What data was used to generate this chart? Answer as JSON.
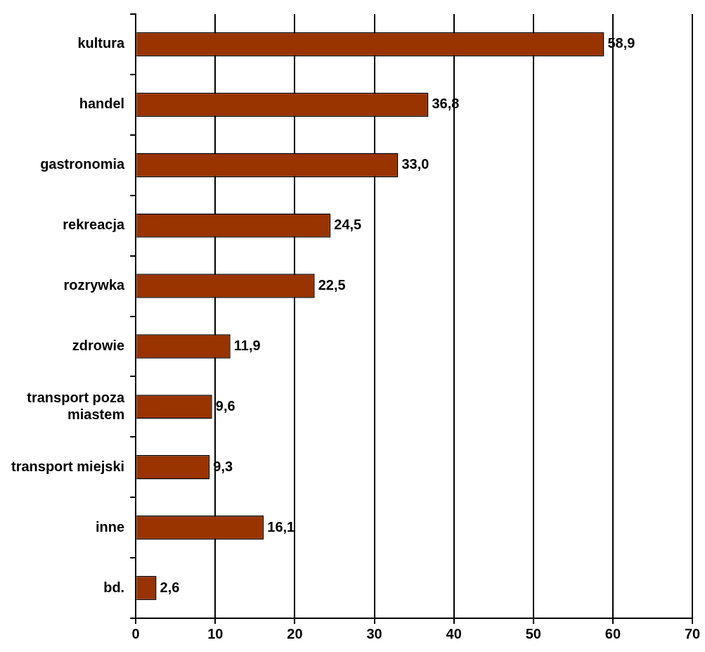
{
  "chart_data": {
    "type": "bar",
    "orientation": "horizontal",
    "categories": [
      "kultura",
      "handel",
      "gastronomia",
      "rekreacja",
      "rozrywka",
      "zdrowie",
      "transport poza miastem",
      "transport miejski",
      "inne",
      "bd."
    ],
    "values": [
      58.9,
      36.8,
      33.0,
      24.5,
      22.5,
      11.9,
      9.6,
      9.3,
      16.1,
      2.6
    ],
    "value_labels": [
      "58,9",
      "36,8",
      "33,0",
      "24,5",
      "22,5",
      "11,9",
      "9,6",
      "9,3",
      "16,1",
      "2,6"
    ],
    "color": "#993300",
    "xlim": [
      0,
      70
    ],
    "xticks": [
      0,
      10,
      20,
      30,
      40,
      50,
      60,
      70
    ],
    "grid": "x",
    "legend": false
  }
}
